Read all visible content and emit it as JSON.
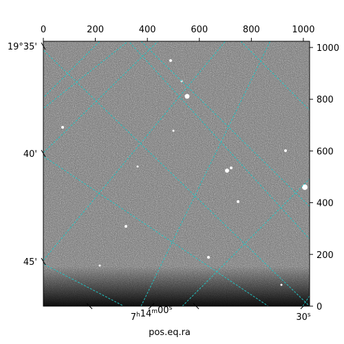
{
  "chart_data": {
    "type": "image",
    "image_description_colormap": "grayscale",
    "pixel_axis_top": {
      "ticks": [
        0,
        200,
        400,
        600,
        800,
        1000
      ],
      "range": [
        0,
        1024
      ]
    },
    "pixel_axis_right": {
      "ticks": [
        0,
        200,
        400,
        600,
        800,
        1000
      ],
      "range": [
        0,
        1024
      ]
    },
    "dec_axis_left": {
      "ticks": [
        "19°35'",
        "40'",
        "45'"
      ]
    },
    "ra_axis_bottom": {
      "ticks": [
        "7h14m00s",
        "30s"
      ]
    },
    "xlabel": "pos.eq.ra",
    "grid_color": "#20c4c4",
    "grid": true
  }
}
